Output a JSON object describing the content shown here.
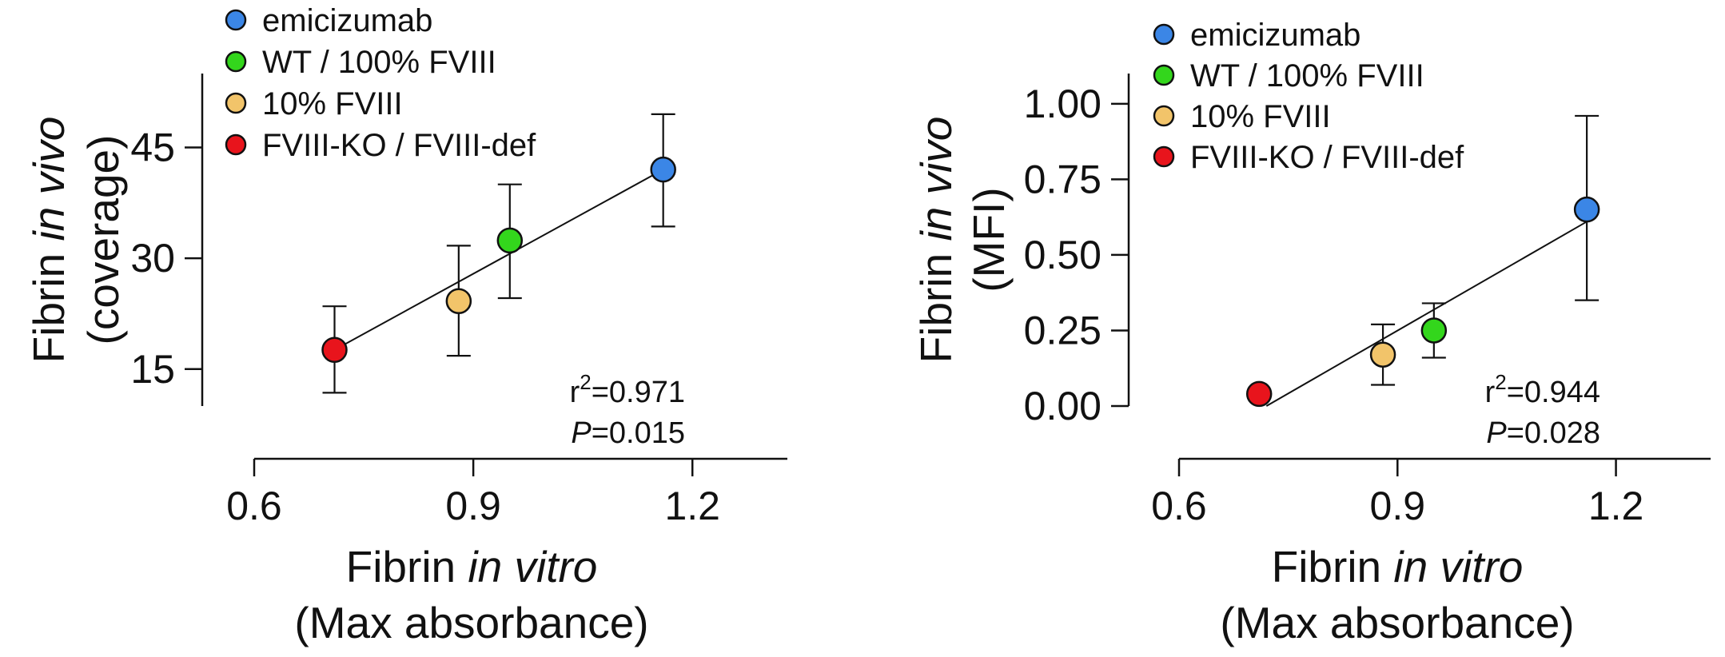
{
  "colors": {
    "emicizumab": "#3b86e6",
    "wt": "#33d61c",
    "ten_pct": "#f2c46a",
    "ko": "#e8141c"
  },
  "legend": {
    "items": [
      {
        "label": "emicizumab",
        "color_key": "emicizumab"
      },
      {
        "label": "WT / 100% FVIII",
        "color_key": "wt"
      },
      {
        "label": "10% FVIII",
        "color_key": "ten_pct"
      },
      {
        "label": "FVIII-KO / FVIII-def",
        "color_key": "ko"
      }
    ]
  },
  "chart_data": [
    {
      "type": "scatter",
      "title": "",
      "xlabel_main": "Fibrin ",
      "xlabel_italic": "in vitro",
      "xlabel_line2": "(Max absorbance)",
      "ylabel_main": "Fibrin ",
      "ylabel_italic": "in vivo",
      "ylabel_line2": "(coverage)",
      "xlim": [
        0.6,
        1.33
      ],
      "ylim": [
        10,
        55
      ],
      "xticks": [
        0.6,
        0.9,
        1.2
      ],
      "xtick_labels": [
        "0.6",
        "0.9",
        "1.2"
      ],
      "yticks": [
        15,
        30,
        45
      ],
      "ytick_labels": [
        "15",
        "30",
        "45"
      ],
      "yaxis_range": [
        10,
        55
      ],
      "points": [
        {
          "name": "FVIII-KO / FVIII-def",
          "color_key": "ko",
          "x": 0.71,
          "y": 17.6,
          "err_low": 11.8,
          "err_high": 23.5
        },
        {
          "name": "10% FVIII",
          "color_key": "ten_pct",
          "x": 0.88,
          "y": 24.2,
          "err_low": 16.8,
          "err_high": 31.7
        },
        {
          "name": "WT / 100% FVIII",
          "color_key": "wt",
          "x": 0.95,
          "y": 32.4,
          "err_low": 24.6,
          "err_high": 40.0
        },
        {
          "name": "emicizumab",
          "color_key": "emicizumab",
          "x": 1.16,
          "y": 42.0,
          "err_low": 34.3,
          "err_high": 49.5
        }
      ],
      "fit": {
        "x": [
          0.71,
          1.16
        ],
        "y": [
          17.6,
          42.0
        ]
      },
      "r2_prefix": "r",
      "r2_exp": "2",
      "r2_value": "=0.971",
      "p_label": "P",
      "p_value": "=0.015"
    },
    {
      "type": "scatter",
      "title": "",
      "xlabel_main": "Fibrin ",
      "xlabel_italic": "in vitro",
      "xlabel_line2": "(Max absorbance)",
      "ylabel_main": "Fibrin ",
      "ylabel_italic": "in vivo",
      "ylabel_line2": "(MFI)",
      "xlim": [
        0.6,
        1.33
      ],
      "ylim": [
        0.0,
        1.1
      ],
      "xticks": [
        0.6,
        0.9,
        1.2
      ],
      "xtick_labels": [
        "0.6",
        "0.9",
        "1.2"
      ],
      "yticks": [
        0.0,
        0.25,
        0.5,
        0.75,
        1.0
      ],
      "ytick_labels": [
        "0.00",
        "0.25",
        "0.50",
        "0.75",
        "1.00"
      ],
      "yaxis_range": [
        0.0,
        1.1
      ],
      "points": [
        {
          "name": "FVIII-KO / FVIII-def",
          "color_key": "ko",
          "x": 0.71,
          "y": 0.04,
          "err_low": null,
          "err_high": null
        },
        {
          "name": "10% FVIII",
          "color_key": "ten_pct",
          "x": 0.88,
          "y": 0.17,
          "err_low": 0.07,
          "err_high": 0.27
        },
        {
          "name": "WT / 100% FVIII",
          "color_key": "wt",
          "x": 0.95,
          "y": 0.25,
          "err_low": 0.16,
          "err_high": 0.34
        },
        {
          "name": "emicizumab",
          "color_key": "emicizumab",
          "x": 1.16,
          "y": 0.65,
          "err_low": 0.35,
          "err_high": 0.96
        }
      ],
      "fit": {
        "x": [
          0.72,
          1.16
        ],
        "y": [
          0.0,
          0.61
        ]
      },
      "r2_prefix": "r",
      "r2_exp": "2",
      "r2_value": "=0.944",
      "p_label": "P",
      "p_value": "=0.028"
    }
  ]
}
